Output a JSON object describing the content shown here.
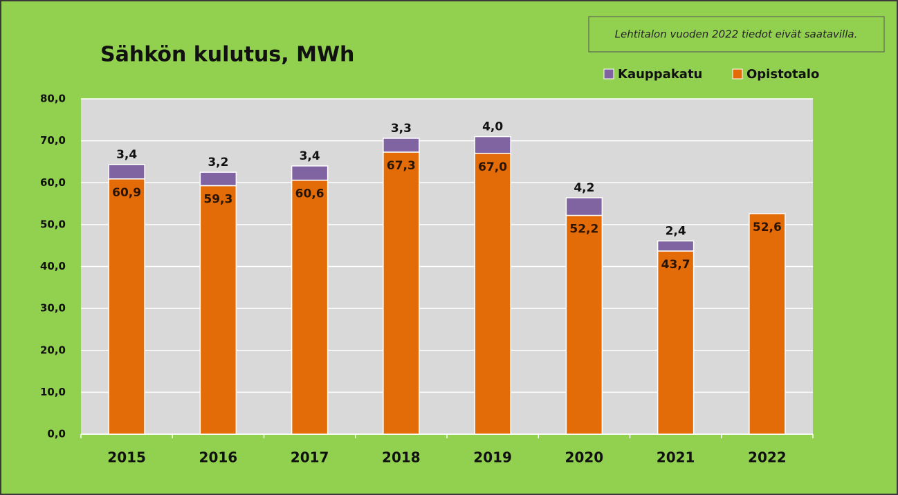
{
  "chart_data": {
    "type": "stacked-bar",
    "title": "Sähkön kulutus, MWh",
    "annotation": "Lehtitalon vuoden 2022 tiedot eivät saatavilla.",
    "categories": [
      "2015",
      "2016",
      "2017",
      "2018",
      "2019",
      "2020",
      "2021",
      "2022"
    ],
    "series": [
      {
        "name": "Kauppakatu",
        "color": "#8064a2",
        "values": [
          3.4,
          3.2,
          3.4,
          3.3,
          4.0,
          4.2,
          2.4,
          null
        ],
        "value_labels": [
          "3,4",
          "3,2",
          "3,4",
          "3,3",
          "4,0",
          "4,2",
          "2,4",
          null
        ]
      },
      {
        "name": "Opistotalo",
        "color": "#e36c09",
        "values": [
          60.9,
          59.3,
          60.6,
          67.3,
          67.0,
          52.2,
          43.7,
          52.6
        ],
        "value_labels": [
          "60,9",
          "59,3",
          "60,6",
          "67,3",
          "67,0",
          "52,2",
          "43,7",
          "52,6"
        ]
      }
    ],
    "ylim": [
      0,
      80
    ],
    "yticks": [
      {
        "value": 0,
        "label": "0,0"
      },
      {
        "value": 10,
        "label": "10,0"
      },
      {
        "value": 20,
        "label": "20,0"
      },
      {
        "value": 30,
        "label": "30,0"
      },
      {
        "value": 40,
        "label": "40,0"
      },
      {
        "value": 50,
        "label": "50,0"
      },
      {
        "value": 60,
        "label": "60,0"
      },
      {
        "value": 70,
        "label": "70,0"
      },
      {
        "value": 80,
        "label": "80,0"
      }
    ],
    "grid": true,
    "legend": "top-right"
  }
}
